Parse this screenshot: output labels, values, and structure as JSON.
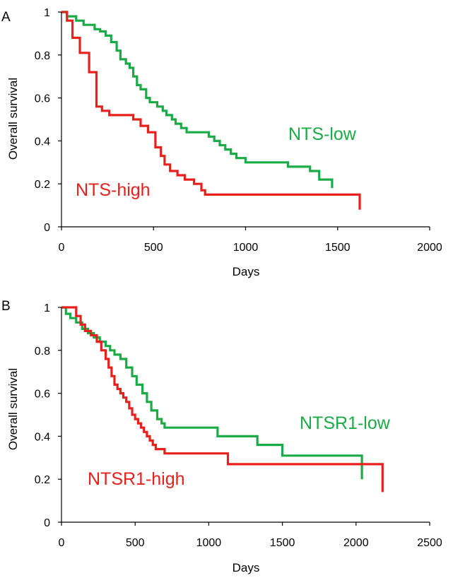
{
  "chart_data": [
    {
      "panel": "A",
      "type": "line",
      "step": true,
      "xlabel": "Days",
      "ylabel": "Overall survival",
      "xlim": [
        0,
        2000
      ],
      "ylim": [
        0,
        1
      ],
      "xticks": [
        0,
        500,
        1000,
        1500,
        2000
      ],
      "yticks": [
        0,
        0.2,
        0.4,
        0.6,
        0.8,
        1
      ],
      "xtick_labels": [
        "0",
        "500",
        "1000",
        "1500",
        "2000"
      ],
      "ytick_labels": [
        "0",
        "0.2",
        "0.4",
        "0.6",
        "0.8",
        "1"
      ],
      "series": [
        {
          "name": "NTS-low",
          "color": "#1aab47",
          "x": [
            0,
            30,
            80,
            120,
            180,
            210,
            240,
            270,
            300,
            320,
            350,
            370,
            390,
            410,
            430,
            460,
            480,
            520,
            550,
            570,
            600,
            620,
            650,
            680,
            700,
            800,
            830,
            860,
            890,
            920,
            950,
            980,
            1000,
            1050,
            1100,
            1230,
            1350,
            1400,
            1470
          ],
          "y": [
            1,
            0.98,
            0.96,
            0.94,
            0.92,
            0.91,
            0.89,
            0.86,
            0.82,
            0.78,
            0.76,
            0.74,
            0.7,
            0.66,
            0.64,
            0.6,
            0.58,
            0.56,
            0.54,
            0.52,
            0.5,
            0.48,
            0.46,
            0.44,
            0.44,
            0.42,
            0.4,
            0.38,
            0.36,
            0.34,
            0.32,
            0.32,
            0.3,
            0.3,
            0.3,
            0.28,
            0.26,
            0.22,
            0.18
          ]
        },
        {
          "name": "NTS-high",
          "color": "#e8201c",
          "x": [
            0,
            30,
            60,
            100,
            150,
            190,
            220,
            260,
            390,
            430,
            470,
            510,
            540,
            560,
            590,
            630,
            670,
            720,
            760,
            780,
            1620
          ],
          "y": [
            1,
            0.96,
            0.88,
            0.81,
            0.72,
            0.56,
            0.54,
            0.52,
            0.5,
            0.47,
            0.44,
            0.37,
            0.33,
            0.29,
            0.26,
            0.24,
            0.22,
            0.2,
            0.17,
            0.15,
            0.08
          ]
        }
      ]
    },
    {
      "panel": "B",
      "type": "line",
      "step": true,
      "xlabel": "Days",
      "ylabel": "Overall survival",
      "xlim": [
        0,
        2500
      ],
      "ylim": [
        0,
        1
      ],
      "xticks": [
        0,
        500,
        1000,
        1500,
        2000,
        2500
      ],
      "yticks": [
        0,
        0.2,
        0.4,
        0.6,
        0.8,
        1
      ],
      "xtick_labels": [
        "0",
        "500",
        "1000",
        "1500",
        "2000",
        "2500"
      ],
      "ytick_labels": [
        "0",
        "0.2",
        "0.4",
        "0.6",
        "0.8",
        "1"
      ],
      "series": [
        {
          "name": "NTSR1-low",
          "color": "#1aab47",
          "x": [
            0,
            30,
            60,
            100,
            140,
            180,
            220,
            260,
            300,
            330,
            360,
            400,
            440,
            480,
            510,
            550,
            580,
            610,
            650,
            680,
            700,
            1060,
            1330,
            1500,
            2040
          ],
          "y": [
            1,
            0.97,
            0.95,
            0.93,
            0.9,
            0.88,
            0.86,
            0.84,
            0.82,
            0.8,
            0.78,
            0.76,
            0.72,
            0.68,
            0.64,
            0.6,
            0.56,
            0.52,
            0.48,
            0.46,
            0.44,
            0.4,
            0.36,
            0.31,
            0.2
          ]
        },
        {
          "name": "NTSR1-high",
          "color": "#e8201c",
          "x": [
            0,
            100,
            130,
            160,
            200,
            240,
            270,
            300,
            320,
            340,
            360,
            380,
            400,
            420,
            440,
            460,
            480,
            500,
            520,
            540,
            560,
            580,
            600,
            620,
            640,
            660,
            700,
            740,
            1130,
            2180
          ],
          "y": [
            1,
            0.96,
            0.92,
            0.89,
            0.87,
            0.84,
            0.8,
            0.76,
            0.72,
            0.68,
            0.64,
            0.62,
            0.6,
            0.58,
            0.56,
            0.53,
            0.5,
            0.48,
            0.46,
            0.44,
            0.42,
            0.4,
            0.38,
            0.36,
            0.34,
            0.34,
            0.32,
            0.32,
            0.27,
            0.14
          ]
        }
      ]
    }
  ]
}
